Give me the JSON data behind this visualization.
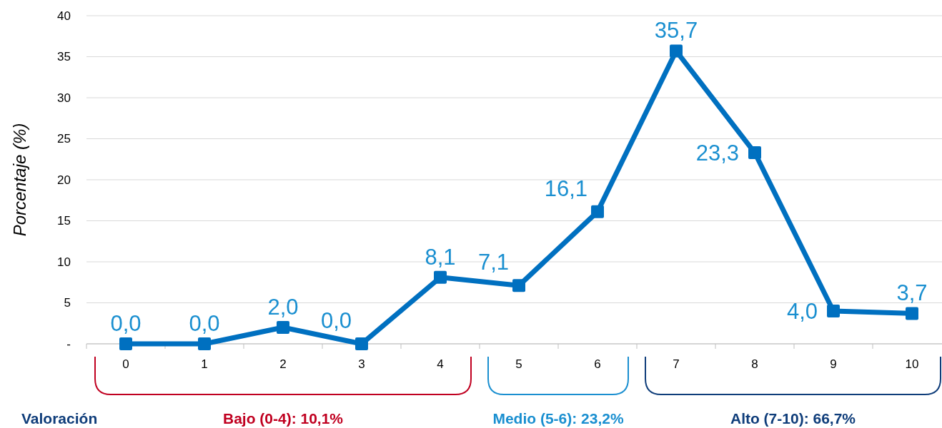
{
  "chart_data": {
    "type": "line",
    "ylabel": "Porcentaje (%)",
    "categories": [
      "0",
      "1",
      "2",
      "3",
      "4",
      "5",
      "6",
      "7",
      "8",
      "9",
      "10"
    ],
    "series": [
      {
        "color": "#0070c0",
        "values": [
          0,
          0,
          2,
          0,
          8.1,
          7.1,
          16.1,
          35.7,
          23.3,
          4,
          3.7
        ],
        "value_labels": [
          "0,0",
          "0,0",
          "2,0",
          "0,0",
          "8,1",
          "7,1",
          "16,1",
          "35,7",
          "23,3",
          "4,0",
          "3,7"
        ]
      }
    ],
    "ylim": [
      0,
      40
    ],
    "yticks": [
      {
        "value": 0,
        "label": "-"
      },
      5,
      10,
      15,
      20,
      25,
      30,
      35,
      40
    ],
    "grid": "y",
    "marker": "square",
    "line_style": "solid",
    "annotations": [
      "Valoración",
      "Bajo (0-4): 10,1%",
      "Medio (5-6): 23,2%",
      "Alto (7-10): 66,7%"
    ]
  }
}
